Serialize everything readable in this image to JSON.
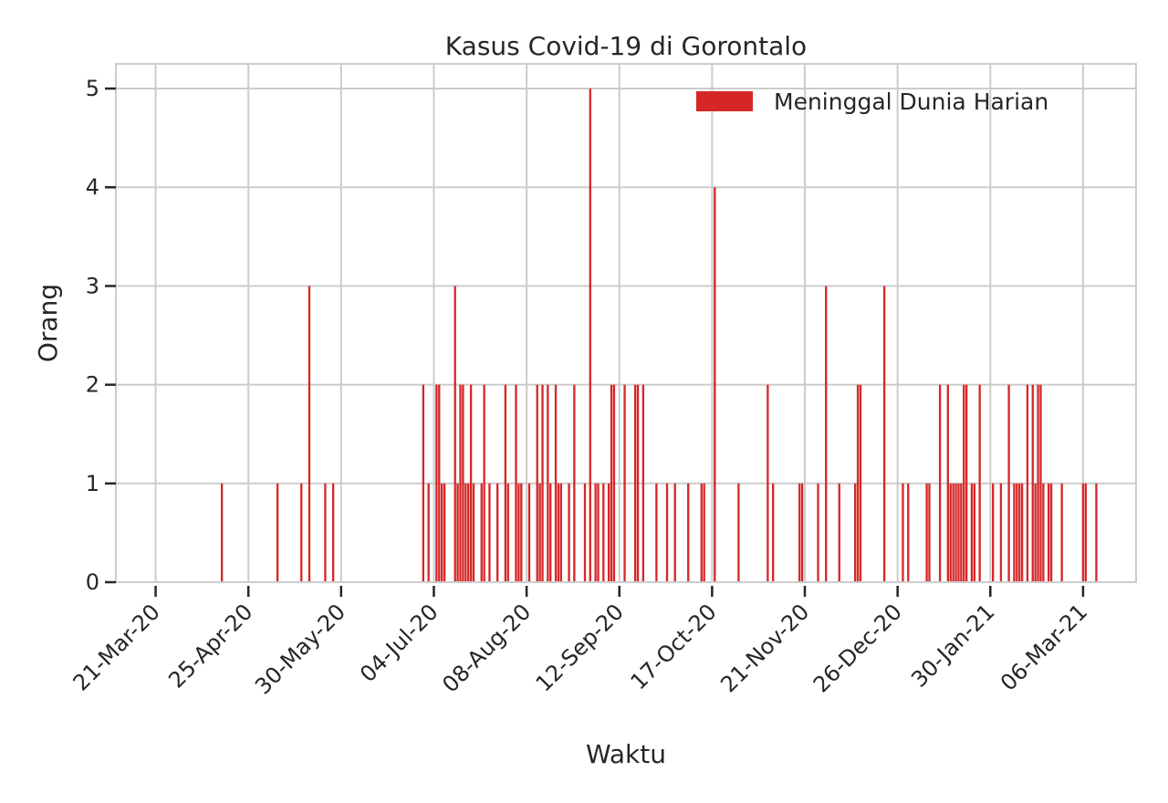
{
  "chart_data": {
    "type": "bar",
    "title": "Kasus Covid-19 di Gorontalo",
    "xlabel": "Waktu",
    "ylabel": "Orang",
    "ylim": [
      0,
      5.25
    ],
    "xlim": [
      "2020-03-06",
      "2021-03-26"
    ],
    "grid": true,
    "legend_position": "upper-right",
    "series": [
      {
        "name": "Meninggal Dunia Harian",
        "color": "#d62728",
        "points": [
          [
            "2020-04-15",
            1
          ],
          [
            "2020-05-06",
            1
          ],
          [
            "2020-05-15",
            1
          ],
          [
            "2020-05-18",
            3
          ],
          [
            "2020-05-24",
            1
          ],
          [
            "2020-05-27",
            1
          ],
          [
            "2020-06-30",
            2
          ],
          [
            "2020-07-02",
            1
          ],
          [
            "2020-07-05",
            2
          ],
          [
            "2020-07-06",
            2
          ],
          [
            "2020-07-07",
            1
          ],
          [
            "2020-07-08",
            1
          ],
          [
            "2020-07-12",
            3
          ],
          [
            "2020-07-13",
            1
          ],
          [
            "2020-07-14",
            2
          ],
          [
            "2020-07-15",
            2
          ],
          [
            "2020-07-16",
            1
          ],
          [
            "2020-07-17",
            1
          ],
          [
            "2020-07-18",
            2
          ],
          [
            "2020-07-19",
            1
          ],
          [
            "2020-07-22",
            1
          ],
          [
            "2020-07-23",
            2
          ],
          [
            "2020-07-25",
            1
          ],
          [
            "2020-07-28",
            1
          ],
          [
            "2020-07-31",
            2
          ],
          [
            "2020-08-01",
            1
          ],
          [
            "2020-08-04",
            2
          ],
          [
            "2020-08-05",
            1
          ],
          [
            "2020-08-06",
            1
          ],
          [
            "2020-08-09",
            1
          ],
          [
            "2020-08-12",
            2
          ],
          [
            "2020-08-13",
            1
          ],
          [
            "2020-08-14",
            2
          ],
          [
            "2020-08-16",
            2
          ],
          [
            "2020-08-17",
            1
          ],
          [
            "2020-08-19",
            2
          ],
          [
            "2020-08-20",
            1
          ],
          [
            "2020-08-21",
            1
          ],
          [
            "2020-08-24",
            1
          ],
          [
            "2020-08-26",
            2
          ],
          [
            "2020-08-30",
            1
          ],
          [
            "2020-09-01",
            5
          ],
          [
            "2020-09-03",
            1
          ],
          [
            "2020-09-04",
            1
          ],
          [
            "2020-09-06",
            1
          ],
          [
            "2020-09-08",
            1
          ],
          [
            "2020-09-09",
            2
          ],
          [
            "2020-09-10",
            2
          ],
          [
            "2020-09-14",
            2
          ],
          [
            "2020-09-18",
            2
          ],
          [
            "2020-09-19",
            2
          ],
          [
            "2020-09-21",
            2
          ],
          [
            "2020-09-26",
            1
          ],
          [
            "2020-09-30",
            1
          ],
          [
            "2020-10-03",
            1
          ],
          [
            "2020-10-08",
            1
          ],
          [
            "2020-10-13",
            1
          ],
          [
            "2020-10-14",
            1
          ],
          [
            "2020-10-18",
            4
          ],
          [
            "2020-10-27",
            1
          ],
          [
            "2020-11-07",
            2
          ],
          [
            "2020-11-09",
            1
          ],
          [
            "2020-11-19",
            1
          ],
          [
            "2020-11-20",
            1
          ],
          [
            "2020-11-26",
            1
          ],
          [
            "2020-11-29",
            3
          ],
          [
            "2020-12-04",
            1
          ],
          [
            "2020-12-10",
            1
          ],
          [
            "2020-12-11",
            2
          ],
          [
            "2020-12-12",
            2
          ],
          [
            "2020-12-21",
            3
          ],
          [
            "2020-12-28",
            1
          ],
          [
            "2020-12-30",
            1
          ],
          [
            "2021-01-06",
            1
          ],
          [
            "2021-01-07",
            1
          ],
          [
            "2021-01-11",
            2
          ],
          [
            "2021-01-14",
            2
          ],
          [
            "2021-01-15",
            1
          ],
          [
            "2021-01-16",
            1
          ],
          [
            "2021-01-17",
            1
          ],
          [
            "2021-01-18",
            1
          ],
          [
            "2021-01-19",
            1
          ],
          [
            "2021-01-20",
            2
          ],
          [
            "2021-01-21",
            2
          ],
          [
            "2021-01-23",
            1
          ],
          [
            "2021-01-24",
            1
          ],
          [
            "2021-01-26",
            2
          ],
          [
            "2021-01-31",
            1
          ],
          [
            "2021-02-03",
            1
          ],
          [
            "2021-02-06",
            2
          ],
          [
            "2021-02-08",
            1
          ],
          [
            "2021-02-09",
            1
          ],
          [
            "2021-02-10",
            1
          ],
          [
            "2021-02-11",
            1
          ],
          [
            "2021-02-13",
            2
          ],
          [
            "2021-02-15",
            2
          ],
          [
            "2021-02-16",
            1
          ],
          [
            "2021-02-17",
            2
          ],
          [
            "2021-02-18",
            2
          ],
          [
            "2021-02-19",
            1
          ],
          [
            "2021-02-21",
            1
          ],
          [
            "2021-02-22",
            1
          ],
          [
            "2021-02-26",
            1
          ],
          [
            "2021-03-06",
            1
          ],
          [
            "2021-03-07",
            1
          ],
          [
            "2021-03-11",
            1
          ]
        ]
      }
    ],
    "y_ticks": [
      0,
      1,
      2,
      3,
      4,
      5
    ],
    "x_ticks": [
      {
        "date": "2020-03-21",
        "label": "21-Mar-20"
      },
      {
        "date": "2020-04-25",
        "label": "25-Apr-20"
      },
      {
        "date": "2020-05-30",
        "label": "30-May-20"
      },
      {
        "date": "2020-07-04",
        "label": "04-Jul-20"
      },
      {
        "date": "2020-08-08",
        "label": "08-Aug-20"
      },
      {
        "date": "2020-09-12",
        "label": "12-Sep-20"
      },
      {
        "date": "2020-10-17",
        "label": "17-Oct-20"
      },
      {
        "date": "2020-11-21",
        "label": "21-Nov-20"
      },
      {
        "date": "2020-12-26",
        "label": "26-Dec-20"
      },
      {
        "date": "2021-01-30",
        "label": "30-Jan-21"
      },
      {
        "date": "2021-03-06",
        "label": "06-Mar-21"
      }
    ]
  }
}
